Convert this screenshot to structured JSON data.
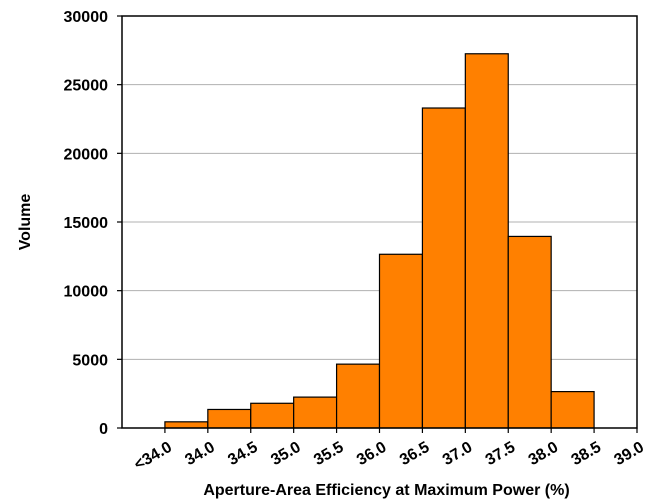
{
  "chart_data": {
    "type": "bar",
    "xlabel": "Aperture-Area Efficiency at Maximum Power (%)",
    "ylabel": "Volume",
    "ylim": [
      0,
      30000
    ],
    "yticks": [
      "0",
      "5000",
      "10000",
      "15000",
      "20000",
      "25000",
      "30000"
    ],
    "x_tick_labels": [
      "<34.0",
      "34.0",
      "34.5",
      "35.0",
      "35.5",
      "36.0",
      "36.5",
      "37.0",
      "37.5",
      "38.0",
      "38.5",
      "39.0"
    ],
    "categories": [
      "<34.0",
      "34.0–34.5",
      "34.5–35.0",
      "35.0–35.5",
      "35.5–36.0",
      "36.0–36.5",
      "36.5–37.0",
      "37.0–37.5",
      "37.5–38.0",
      "38.0–38.5",
      "38.5–39.0"
    ],
    "values": [
      0,
      450,
      1350,
      1800,
      2250,
      4650,
      12650,
      23300,
      27250,
      13950,
      2650
    ],
    "bar_color": "#FF8000",
    "grid": "horizontal"
  }
}
